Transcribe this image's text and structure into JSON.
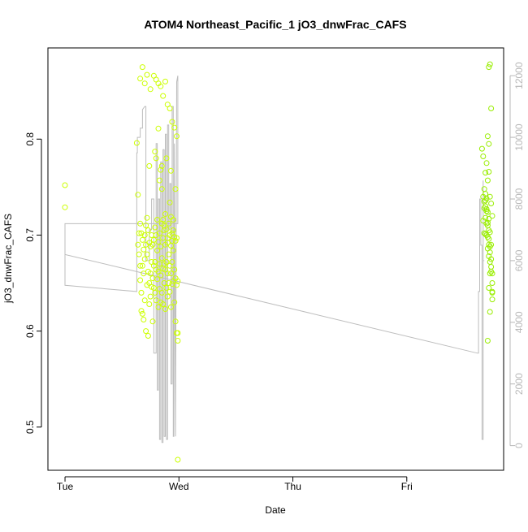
{
  "chart_data": {
    "type": "scatter",
    "title": "ATOM4 Northeast_Pacific_1 jO3_dnwFrac_CAFS",
    "xlabel": "Date",
    "ylabel": "jO3_dnwFrac_CAFS",
    "x_tick_labels": [
      "Tue",
      "Wed",
      "Thu",
      "Fri"
    ],
    "x_tick_positions_days": [
      0,
      1,
      2,
      3
    ],
    "xlim_days": [
      -0.15,
      3.85
    ],
    "ylim": [
      0.455,
      0.895
    ],
    "y_ticks": [
      0.5,
      0.6,
      0.7,
      0.8
    ],
    "y_tick_labels": [
      "0.5",
      "0.6",
      "0.7",
      "0.8"
    ],
    "y2lim": [
      -800,
      12900
    ],
    "y2_ticks": [
      0,
      2000,
      4000,
      6000,
      8000,
      10000,
      12000
    ],
    "y2_tick_labels": [
      "0",
      "2000",
      "4000",
      "6000",
      "8000",
      "10000",
      "12000"
    ],
    "grid": false,
    "colors": {
      "points_early": "#ccff00",
      "points_late": "#99ee00",
      "altitude_line": "#bdbdbd",
      "right_axis": "#b8b8b8"
    },
    "series": [
      {
        "kind": "points",
        "axis": "left",
        "x_day": [
          0.0,
          0.0,
          0.63,
          0.64,
          0.64,
          0.65,
          0.65,
          0.66,
          0.66,
          0.66,
          0.67,
          0.67,
          0.67,
          0.68,
          0.68,
          0.68,
          0.69,
          0.69,
          0.69,
          0.7,
          0.7,
          0.7,
          0.71,
          0.71,
          0.71,
          0.72,
          0.72,
          0.72,
          0.73,
          0.73,
          0.73,
          0.74,
          0.74,
          0.74,
          0.75,
          0.75,
          0.75,
          0.76,
          0.76,
          0.76,
          0.77,
          0.77,
          0.77,
          0.78,
          0.78,
          0.78,
          0.79,
          0.79,
          0.79,
          0.8,
          0.8,
          0.8,
          0.81,
          0.81,
          0.81,
          0.82,
          0.82,
          0.82,
          0.83,
          0.83,
          0.83,
          0.84,
          0.84,
          0.84,
          0.85,
          0.85,
          0.85,
          0.86,
          0.86,
          0.86,
          0.87,
          0.87,
          0.87,
          0.88,
          0.88,
          0.88,
          0.89,
          0.89,
          0.89,
          0.9,
          0.9,
          0.9,
          0.91,
          0.91,
          0.91,
          0.92,
          0.92,
          0.92,
          0.93,
          0.93,
          0.93,
          0.94,
          0.94,
          0.94,
          0.95,
          0.95,
          0.95,
          0.96,
          0.96,
          0.96,
          0.97,
          0.97,
          0.97,
          0.98,
          0.98,
          0.98,
          0.66,
          0.7,
          0.72,
          0.75,
          0.78,
          0.8,
          0.82,
          0.84,
          0.86,
          0.88,
          0.9,
          0.92,
          0.94,
          0.96,
          0.98,
          0.99,
          0.99,
          0.99,
          0.99,
          0.68,
          0.74,
          0.79,
          0.85,
          0.89,
          0.93,
          0.97,
          0.84,
          0.86,
          0.88,
          0.8,
          0.83,
          0.87,
          0.9,
          0.92,
          0.93,
          0.94,
          0.95,
          0.82,
          0.85
        ],
        "y": [
          0.752,
          0.729,
          0.796,
          0.742,
          0.69,
          0.702,
          0.68,
          0.712,
          0.668,
          0.653,
          0.702,
          0.64,
          0.621,
          0.695,
          0.668,
          0.618,
          0.685,
          0.66,
          0.612,
          0.7,
          0.675,
          0.632,
          0.71,
          0.69,
          0.6,
          0.718,
          0.68,
          0.648,
          0.705,
          0.662,
          0.595,
          0.692,
          0.65,
          0.628,
          0.688,
          0.66,
          0.636,
          0.7,
          0.672,
          0.646,
          0.69,
          0.655,
          0.61,
          0.695,
          0.668,
          0.645,
          0.708,
          0.672,
          0.64,
          0.7,
          0.664,
          0.632,
          0.716,
          0.684,
          0.654,
          0.693,
          0.662,
          0.625,
          0.702,
          0.67,
          0.644,
          0.688,
          0.658,
          0.63,
          0.712,
          0.676,
          0.64,
          0.697,
          0.665,
          0.628,
          0.705,
          0.67,
          0.65,
          0.69,
          0.664,
          0.623,
          0.706,
          0.672,
          0.645,
          0.692,
          0.66,
          0.636,
          0.712,
          0.68,
          0.65,
          0.7,
          0.668,
          0.641,
          0.689,
          0.66,
          0.625,
          0.702,
          0.672,
          0.649,
          0.716,
          0.684,
          0.652,
          0.698,
          0.664,
          0.63,
          0.694,
          0.655,
          0.61,
          0.697,
          0.648,
          0.598,
          0.863,
          0.858,
          0.867,
          0.852,
          0.866,
          0.862,
          0.858,
          0.855,
          0.845,
          0.86,
          0.836,
          0.832,
          0.818,
          0.812,
          0.803,
          0.59,
          0.598,
          0.652,
          0.466,
          0.875,
          0.772,
          0.787,
          0.772,
          0.78,
          0.767,
          0.748,
          0.768,
          0.716,
          0.722,
          0.78,
          0.757,
          0.71,
          0.697,
          0.734,
          0.719,
          0.694,
          0.705,
          0.811,
          0.748
        ]
      },
      {
        "kind": "points",
        "axis": "left",
        "x_day": [
          3.66,
          3.67,
          3.67,
          3.67,
          3.68,
          3.68,
          3.68,
          3.69,
          3.69,
          3.69,
          3.69,
          3.7,
          3.7,
          3.7,
          3.7,
          3.71,
          3.71,
          3.71,
          3.71,
          3.72,
          3.72,
          3.72,
          3.72,
          3.73,
          3.73,
          3.73,
          3.73,
          3.74,
          3.74,
          3.74,
          3.75,
          3.75,
          3.75,
          3.75,
          3.69,
          3.7,
          3.71,
          3.72,
          3.73,
          3.74,
          3.75,
          3.68,
          3.69,
          3.7,
          3.71,
          3.72,
          3.73,
          3.74,
          3.71,
          3.72,
          3.73,
          3.74,
          3.75,
          3.72,
          3.71,
          3.72,
          3.73
        ],
        "y": [
          0.79,
          0.782,
          0.74,
          0.715,
          0.748,
          0.735,
          0.702,
          0.743,
          0.73,
          0.718,
          0.701,
          0.738,
          0.727,
          0.712,
          0.7,
          0.724,
          0.71,
          0.698,
          0.686,
          0.717,
          0.705,
          0.69,
          0.678,
          0.703,
          0.688,
          0.672,
          0.66,
          0.69,
          0.675,
          0.662,
          0.65,
          0.641,
          0.633,
          0.66,
          0.765,
          0.775,
          0.757,
          0.766,
          0.74,
          0.733,
          0.72,
          0.728,
          0.736,
          0.725,
          0.713,
          0.696,
          0.682,
          0.667,
          0.803,
          0.875,
          0.878,
          0.832,
          0.64,
          0.645,
          0.59,
          0.795,
          0.62
        ]
      },
      {
        "kind": "line",
        "axis": "right",
        "name_note": "altitude",
        "x_day": [
          0.0,
          0.0,
          0.63,
          0.63,
          0.635,
          0.635,
          0.66,
          0.66,
          0.68,
          0.68,
          0.7,
          0.71,
          0.71,
          0.74,
          0.74,
          0.76,
          0.76,
          0.78,
          0.78,
          0.8,
          0.8,
          0.81,
          0.81,
          0.82,
          0.82,
          0.83,
          0.83,
          0.84,
          0.84,
          0.85,
          0.85,
          0.86,
          0.86,
          0.87,
          0.87,
          0.88,
          0.88,
          0.89,
          0.89,
          0.9,
          0.9,
          0.91,
          0.91,
          0.92,
          0.92,
          0.93,
          0.93,
          0.94,
          0.94,
          0.95,
          0.95,
          0.955,
          0.96,
          0.96,
          0.97,
          0.97,
          0.98,
          0.98,
          0.99,
          0.99,
          0.99,
          0.0,
          0.0,
          3.62,
          3.63,
          3.63,
          3.64,
          3.64,
          3.65,
          3.65,
          3.66,
          3.66,
          3.67,
          3.67,
          3.67,
          3.68
        ],
        "y": [
          6200,
          5200,
          5000,
          9500,
          9500,
          10000,
          10000,
          10300,
          10300,
          10900,
          11000,
          11000,
          6000,
          6000,
          7000,
          7000,
          8000,
          8000,
          3000,
          3000,
          9800,
          9800,
          1800,
          1800,
          8000,
          8000,
          200,
          200,
          9200,
          9200,
          100,
          100,
          9600,
          9600,
          300,
          300,
          10100,
          10100,
          200,
          200,
          10400,
          10400,
          7000,
          7000,
          8500,
          8500,
          2000,
          2000,
          11000,
          11000,
          300,
          300,
          9800,
          9800,
          300,
          300,
          11800,
          11800,
          12000,
          12000,
          7200,
          7200,
          6200,
          3000,
          3000,
          5000,
          5000,
          8000,
          8000,
          6500,
          6500,
          200,
          200,
          8600,
          6000,
          6000
        ]
      }
    ]
  }
}
